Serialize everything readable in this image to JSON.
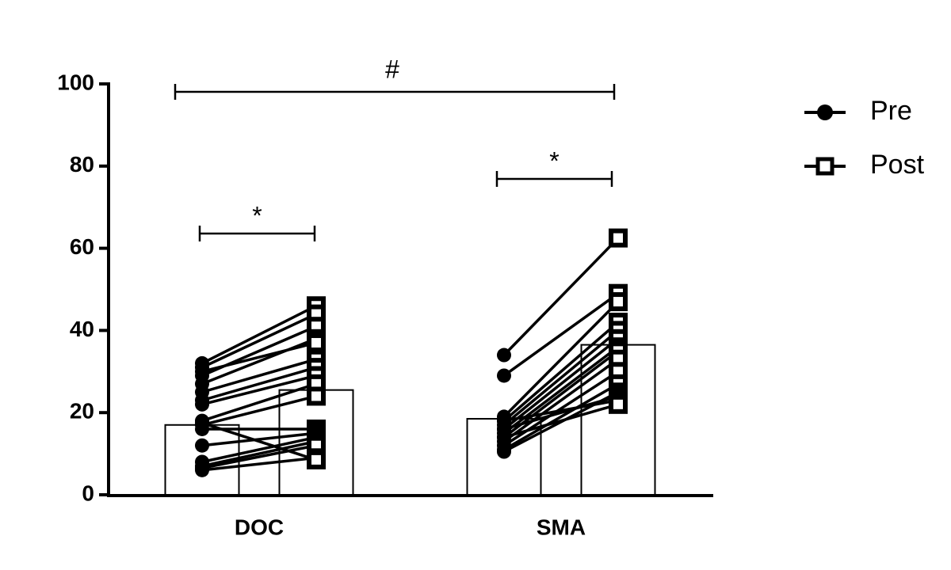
{
  "chart_data": {
    "type": "bar",
    "categories": [
      "DOC",
      "SMA"
    ],
    "series": [
      {
        "name": "Pre",
        "color": "#000000",
        "values": [
          17,
          18.5
        ],
        "points": [
          [
            32,
            31,
            29,
            27,
            25,
            23,
            22,
            18,
            17,
            16,
            12,
            8,
            7,
            6.5,
            6,
            17.5,
            30
          ],
          [
            34,
            29,
            19,
            18,
            17,
            16,
            15,
            14,
            13,
            12,
            11,
            10.5,
            16,
            18,
            14
          ]
        ]
      },
      {
        "name": "Post",
        "color": "#000000",
        "values": [
          25.5,
          36.5
        ],
        "points": [
          [
            46,
            44,
            41,
            38,
            33,
            31,
            29,
            27,
            24,
            16,
            15,
            14,
            13,
            12,
            9,
            8.5,
            37
          ],
          [
            62.5,
            49,
            47,
            42,
            40,
            38,
            36,
            35,
            33,
            30,
            27,
            25,
            24,
            23,
            22
          ]
        ]
      }
    ],
    "annotations": [
      "#",
      "*",
      "*"
    ],
    "ylim": [
      0,
      100
    ],
    "yticks": [
      0,
      20,
      40,
      60,
      80,
      100
    ]
  }
}
